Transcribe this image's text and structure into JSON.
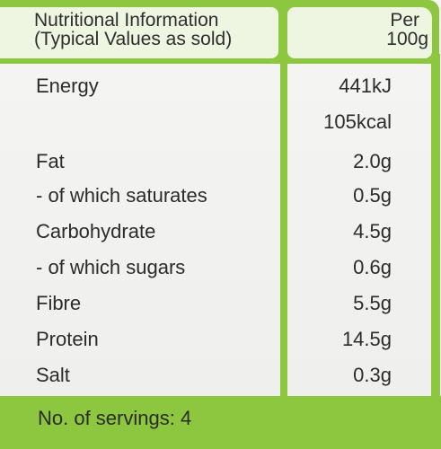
{
  "header": {
    "title_line1": "Nutritional Information",
    "title_line2": "(Typical Values as sold)",
    "per_line1": "Per",
    "per_line2": "100g"
  },
  "rows": [
    {
      "label": "Energy",
      "value": "441kJ"
    },
    {
      "label": "",
      "value": "105kcal"
    },
    {
      "label": "Fat",
      "value": "2.0g"
    },
    {
      "label": "- of which saturates",
      "value": "0.5g"
    },
    {
      "label": "Carbohydrate",
      "value": "4.5g"
    },
    {
      "label": "- of which sugars",
      "value": "0.6g"
    },
    {
      "label": "Fibre",
      "value": "5.5g"
    },
    {
      "label": "Protein",
      "value": "14.5g"
    },
    {
      "label": "Salt",
      "value": "0.3g"
    }
  ],
  "footer": {
    "servings": "No. of servings: 4"
  },
  "colors": {
    "accent_green": "#8dc63f",
    "header_fill": "#eef5e1",
    "background": "#f3f3f1",
    "text": "#2b2b2b"
  }
}
